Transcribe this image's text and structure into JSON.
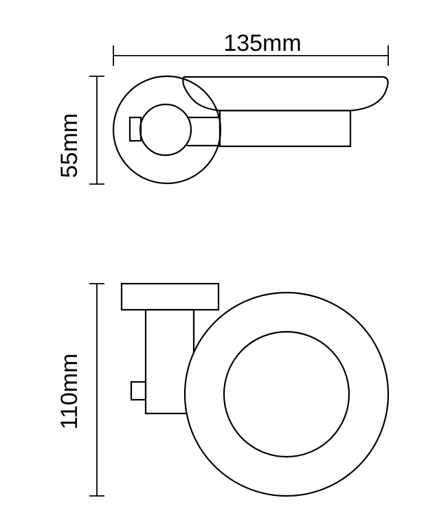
{
  "dimensions": {
    "width_label": "135mm",
    "height_label_top": "55mm",
    "height_label_bottom": "110mm"
  },
  "views": {
    "top": "side-view",
    "bottom": "front-view"
  },
  "colors": {
    "line": "#000000",
    "background": "#ffffff"
  }
}
